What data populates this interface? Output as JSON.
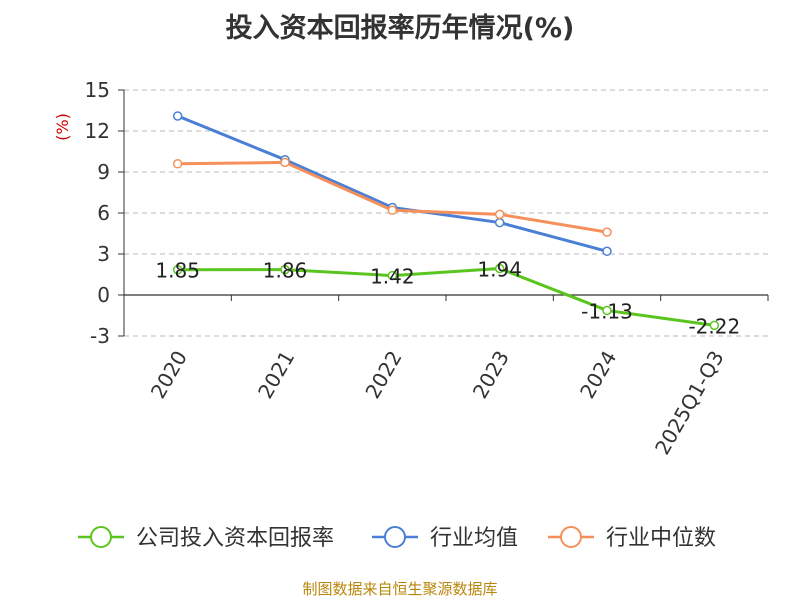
{
  "chart_data": {
    "type": "line",
    "title": "投入资本回报率历年情况(%)",
    "ylabel": "(%)",
    "categories": [
      "2020",
      "2021",
      "2022",
      "2023",
      "2024",
      "2025Q1-Q3"
    ],
    "ylim": [
      -3,
      15
    ],
    "yticks": [
      -3,
      0,
      3,
      6,
      9,
      12,
      15
    ],
    "grid": true,
    "legend_position": "bottom",
    "series": [
      {
        "name": "公司投入资本回报率",
        "color": "#5bc520",
        "values": [
          1.85,
          1.86,
          1.42,
          1.94,
          -1.13,
          -2.22
        ],
        "labels": [
          "1.85",
          "1.86",
          "1.42",
          "1.94",
          "-1.13",
          "-2.22"
        ]
      },
      {
        "name": "行业均值",
        "color": "#4a7fd6",
        "values": [
          13.1,
          9.9,
          6.4,
          5.3,
          3.2,
          null
        ]
      },
      {
        "name": "行业中位数",
        "color": "#f5905a",
        "values": [
          9.6,
          9.7,
          6.2,
          5.9,
          4.6,
          null
        ]
      }
    ]
  },
  "source": "制图数据来自恒生聚源数据库"
}
